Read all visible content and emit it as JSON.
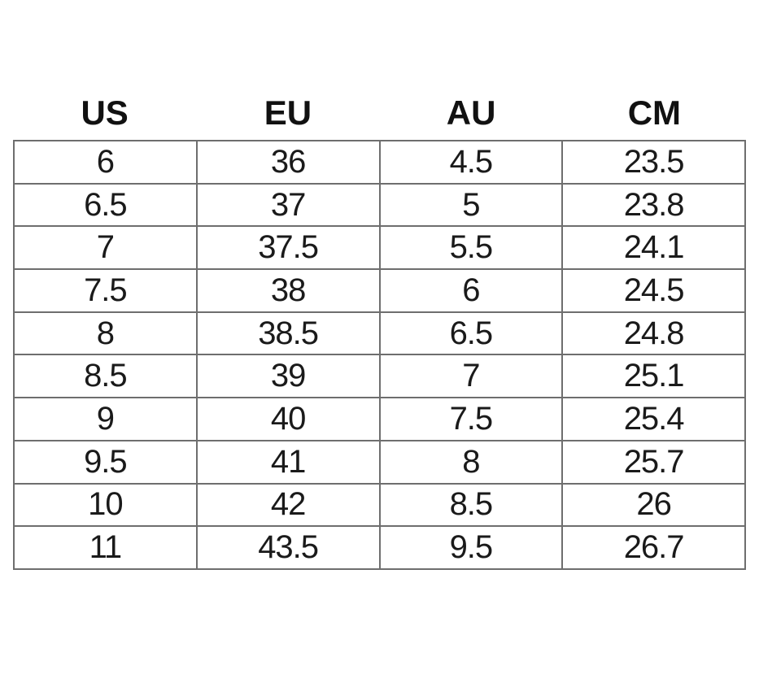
{
  "chart_data": {
    "type": "table",
    "columns": [
      "US",
      "EU",
      "AU",
      "CM"
    ],
    "rows": [
      [
        "6",
        "36",
        "4.5",
        "23.5"
      ],
      [
        "6.5",
        "37",
        "5",
        "23.8"
      ],
      [
        "7",
        "37.5",
        "5.5",
        "24.1"
      ],
      [
        "7.5",
        "38",
        "6",
        "24.5"
      ],
      [
        "8",
        "38.5",
        "6.5",
        "24.8"
      ],
      [
        "8.5",
        "39",
        "7",
        "25.1"
      ],
      [
        "9",
        "40",
        "7.5",
        "25.4"
      ],
      [
        "9.5",
        "41",
        "8",
        "25.7"
      ],
      [
        "10",
        "42",
        "8.5",
        "26"
      ],
      [
        "11",
        "43.5",
        "9.5",
        "26.7"
      ]
    ],
    "layout": {
      "header_outside_border": true,
      "grid": true,
      "column_count": 4,
      "row_count": 10
    },
    "colors": {
      "border": "#6e6e6e",
      "header_text": "#111111",
      "cell_text": "#1a1a1a",
      "background": "#ffffff"
    }
  }
}
